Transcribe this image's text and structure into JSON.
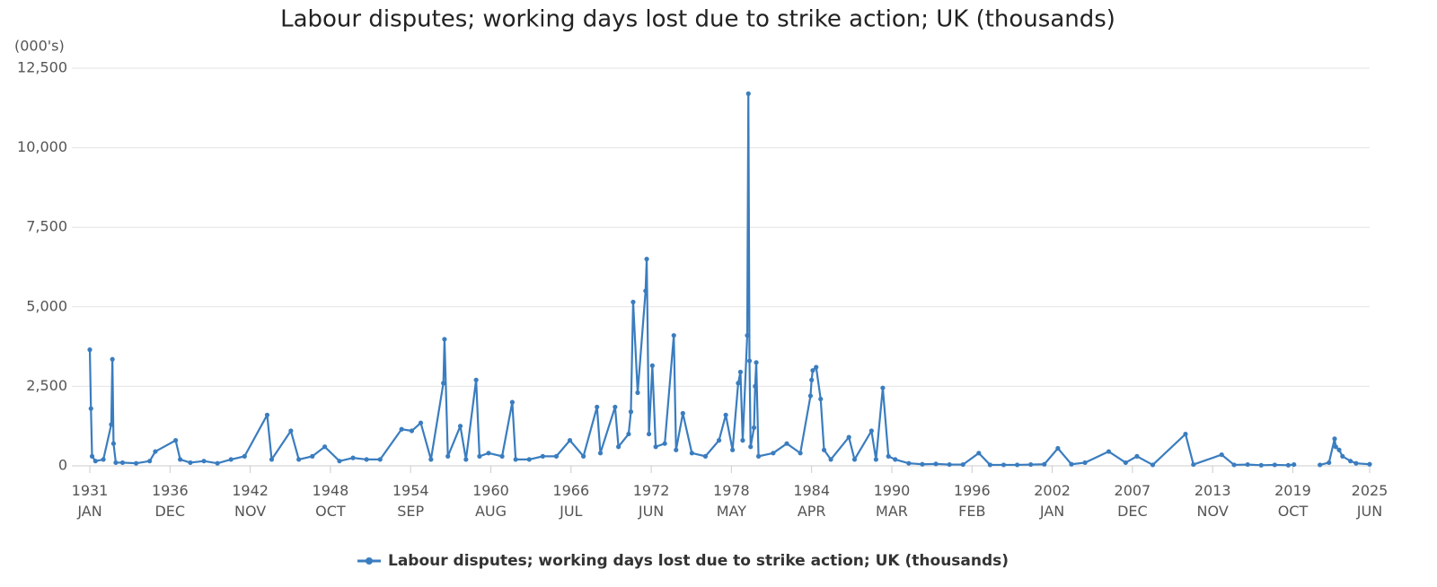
{
  "chart_data": {
    "type": "line",
    "title": "Labour disputes; working days lost due to strike action; UK (thousands)",
    "y_label": "(000's)",
    "xlim": [
      "1931-01",
      "2025-06"
    ],
    "xticks": [
      {
        "value": "1931-01",
        "label": "1931 JAN"
      },
      {
        "value": "1936-12",
        "label": "1936 DEC"
      },
      {
        "value": "1942-11",
        "label": "1942 NOV"
      },
      {
        "value": "1948-10",
        "label": "1948 OCT"
      },
      {
        "value": "1954-09",
        "label": "1954 SEP"
      },
      {
        "value": "1960-08",
        "label": "1960 AUG"
      },
      {
        "value": "1966-07",
        "label": "1966 JUL"
      },
      {
        "value": "1972-06",
        "label": "1972 JUN"
      },
      {
        "value": "1978-05",
        "label": "1978 MAY"
      },
      {
        "value": "1984-04",
        "label": "1984 APR"
      },
      {
        "value": "1990-03",
        "label": "1990 MAR"
      },
      {
        "value": "1996-02",
        "label": "1996 FEB"
      },
      {
        "value": "2002-01",
        "label": "2002 JAN"
      },
      {
        "value": "2007-12",
        "label": "2007 DEC"
      },
      {
        "value": "2013-11",
        "label": "2013 NOV"
      },
      {
        "value": "2019-10",
        "label": "2019 OCT"
      },
      {
        "value": "2025-06",
        "label": "2025 JUN"
      }
    ],
    "ylim": [
      0,
      12500
    ],
    "yticks": [
      0,
      {
        "value": 2500,
        "label": "2,500"
      },
      {
        "value": 5000,
        "label": "5,000"
      },
      {
        "value": 7500,
        "label": "7,500"
      },
      {
        "value": 10000,
        "label": "10,000"
      },
      {
        "value": 12500,
        "label": "12,500"
      }
    ],
    "grid": true,
    "legend": "bottom",
    "x": [
      "1931-01",
      "1931-02",
      "1931-03",
      "1931-06",
      "1932-01",
      "1932-08",
      "1932-09",
      "1932-10",
      "1932-12",
      "1933-06",
      "1934-06",
      "1935-06",
      "1935-11",
      "1937-05",
      "1937-09",
      "1938-06",
      "1939-06",
      "1940-06",
      "1941-06",
      "1942-06",
      "1944-02",
      "1944-06",
      "1945-11",
      "1946-06",
      "1947-06",
      "1948-05",
      "1949-06",
      "1950-06",
      "1951-06",
      "1952-06",
      "1954-01",
      "1954-10",
      "1955-06",
      "1956-03",
      "1957-02",
      "1957-03",
      "1957-06",
      "1958-05",
      "1958-10",
      "1959-07",
      "1959-10",
      "1960-06",
      "1961-06",
      "1962-03",
      "1962-06",
      "1963-06",
      "1964-06",
      "1965-06",
      "1966-06",
      "1967-06",
      "1968-06",
      "1968-09",
      "1969-10",
      "1970-01",
      "1970-10",
      "1970-12",
      "1971-02",
      "1971-06",
      "1972-01",
      "1972-02",
      "1972-04",
      "1972-07",
      "1972-10",
      "1973-06",
      "1974-02",
      "1974-04",
      "1974-10",
      "1975-06",
      "1976-06",
      "1977-06",
      "1977-12",
      "1978-06",
      "1978-11",
      "1979-01",
      "1979-03",
      "1979-07",
      "1979-08",
      "1979-09",
      "1979-10",
      "1980-01",
      "1980-02",
      "1980-03",
      "1980-05",
      "1981-06",
      "1982-06",
      "1983-06",
      "1984-03",
      "1984-04",
      "1984-05",
      "1984-08",
      "1984-12",
      "1985-03",
      "1985-09",
      "1987-01",
      "1987-06",
      "1988-09",
      "1989-01",
      "1989-07",
      "1989-12",
      "1990-06",
      "1991-06",
      "1992-06",
      "1993-06",
      "1994-06",
      "1995-06",
      "1996-08",
      "1997-06",
      "1998-06",
      "1999-06",
      "2000-06",
      "2001-06",
      "2002-06",
      "2003-06",
      "2004-06",
      "2006-03",
      "2007-06",
      "2008-04",
      "2009-06",
      "2011-11",
      "2012-06",
      "2014-07",
      "2015-06",
      "2016-06",
      "2017-06",
      "2018-06",
      "2019-06",
      "2019-11",
      "2020-06",
      "2021-10",
      "2022-06",
      "2022-11",
      "2022-12",
      "2023-03",
      "2023-06",
      "2024-01",
      "2024-06",
      "2025-06"
    ],
    "series": [
      {
        "name": "Labour disputes; working days lost due to strike action; UK (thousands)",
        "color": "#3a7dbf",
        "values": [
          3650,
          1800,
          300,
          150,
          200,
          1300,
          3350,
          700,
          100,
          100,
          80,
          150,
          450,
          800,
          200,
          100,
          150,
          80,
          200,
          300,
          1600,
          200,
          1100,
          200,
          300,
          600,
          150,
          250,
          200,
          200,
          1150,
          1100,
          1350,
          200,
          2600,
          3980,
          300,
          1250,
          200,
          2700,
          300,
          400,
          300,
          2000,
          200,
          200,
          300,
          300,
          800,
          300,
          1850,
          400,
          1850,
          600,
          1000,
          1700,
          5150,
          2300,
          5500,
          6500,
          1000,
          3150,
          600,
          700,
          4100,
          500,
          1650,
          400,
          300,
          800,
          1600,
          500,
          2600,
          2950,
          800,
          4100,
          11700,
          3300,
          600,
          1200,
          2500,
          3250,
          300,
          400,
          700,
          400,
          2200,
          2700,
          3000,
          3100,
          2100,
          500,
          200,
          900,
          200,
          1100,
          200,
          2450,
          300,
          200,
          80,
          50,
          60,
          40,
          40,
          400,
          30,
          30,
          30,
          40,
          50,
          550,
          50,
          100,
          450,
          100,
          300,
          30,
          1000,
          40,
          350,
          30,
          40,
          20,
          30,
          20,
          40,
          null,
          30,
          100,
          850,
          600,
          500,
          300,
          150,
          80,
          50
        ]
      }
    ]
  }
}
